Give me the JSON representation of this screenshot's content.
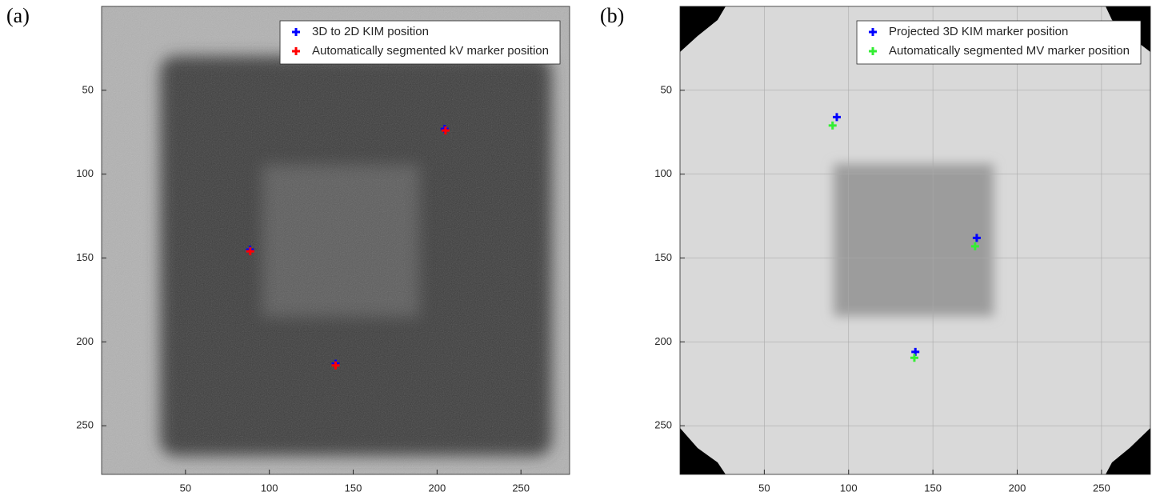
{
  "chart_data": [
    {
      "type": "scatter",
      "label": "(a)",
      "xlim": [
        0,
        279
      ],
      "ylim": [
        0,
        279
      ],
      "y_reversed": true,
      "xticks": [
        50,
        100,
        150,
        200,
        250
      ],
      "yticks": [
        50,
        100,
        150,
        200,
        250
      ],
      "grid": false,
      "legend": "top-right",
      "series": [
        {
          "name": "3D to 2D KIM position",
          "color": "#0000ff",
          "x": [
            204.5,
            88.5,
            139.5
          ],
          "values": [
            73,
            145,
            213
          ]
        },
        {
          "name": "Automatically segmented kV marker position",
          "color": "#ff0000",
          "x": [
            205,
            88.6,
            139.5
          ],
          "values": [
            74,
            146,
            214
          ]
        }
      ]
    },
    {
      "type": "scatter",
      "label": "(b)",
      "xlim": [
        0,
        279
      ],
      "ylim": [
        0,
        279
      ],
      "y_reversed": true,
      "xticks": [
        50,
        100,
        150,
        200,
        250
      ],
      "yticks": [
        50,
        100,
        150,
        200,
        250
      ],
      "grid": true,
      "legend": "top-right",
      "series": [
        {
          "name": "Projected 3D KIM marker position",
          "color": "#0000ff",
          "x": [
            93,
            176,
            139.6
          ],
          "values": [
            66,
            138,
            206
          ]
        },
        {
          "name": "Automatically segmented MV marker position",
          "color": "#33ee33",
          "x": [
            90.5,
            175,
            139
          ],
          "values": [
            71,
            143,
            209.5
          ]
        }
      ]
    }
  ]
}
